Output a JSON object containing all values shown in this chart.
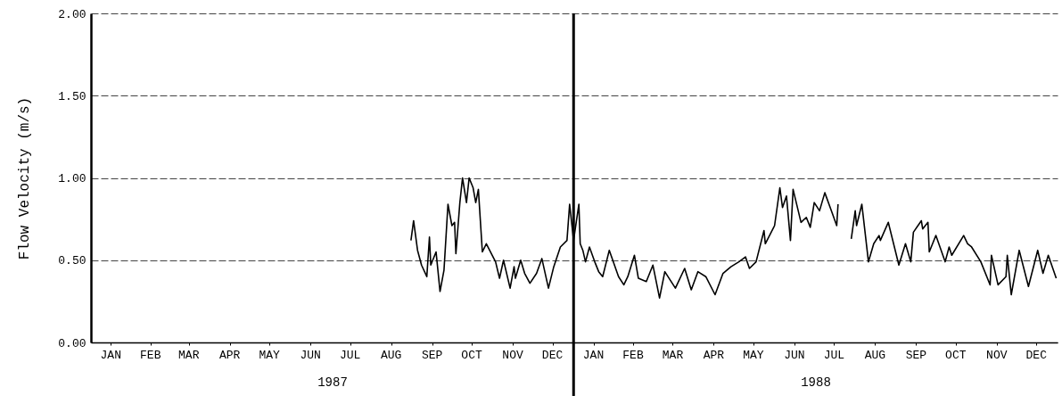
{
  "chart_data": {
    "type": "line",
    "ylabel": "Flow Velocity (m/s)",
    "x": [
      "1987-08-31",
      "1987-09-02",
      "1987-09-05",
      "1987-09-08",
      "1987-09-12",
      "1987-09-14",
      "1987-09-15",
      "1987-09-19",
      "1987-09-22",
      "1987-09-25",
      "1987-09-28",
      "1987-10-01",
      "1987-10-03",
      "1987-10-04",
      "1987-10-07",
      "1987-10-09",
      "1987-10-12",
      "1987-10-14",
      "1987-10-17",
      "1987-10-19",
      "1987-10-21",
      "1987-10-24",
      "1987-10-27",
      "1987-11-03",
      "1987-11-06",
      "1987-11-09",
      "1987-11-14",
      "1987-11-17",
      "1987-11-18",
      "1987-11-22",
      "1987-11-25",
      "1987-11-29",
      "1987-12-04",
      "1987-12-08",
      "1987-12-13",
      "1987-12-17",
      "1987-12-22",
      "1987-12-27",
      "1987-12-29",
      "1988-01-01",
      "1988-01-05",
      "1988-01-06",
      "1988-01-08",
      "1988-01-10",
      "1988-01-13",
      "1988-01-17",
      "1988-01-20",
      "1988-01-23",
      "1988-01-28",
      "1988-02-04",
      "1988-02-08",
      "1988-02-11",
      "1988-02-16",
      "1988-02-19",
      "1988-02-25",
      "1988-03-01",
      "1988-03-06",
      "1988-03-10",
      "1988-03-18",
      "1988-03-25",
      "1988-03-30",
      "1988-04-04",
      "1988-04-10",
      "1988-04-17",
      "1988-04-23",
      "1988-04-29",
      "1988-05-05",
      "1988-05-10",
      "1988-05-13",
      "1988-05-18",
      "1988-05-24",
      "1988-05-25",
      "1988-06-01",
      "1988-06-05",
      "1988-06-07",
      "1988-06-10",
      "1988-06-13",
      "1988-06-15",
      "1988-06-21",
      "1988-06-25",
      "1988-06-28",
      "1988-07-01",
      "1988-07-05",
      "1988-07-09",
      "1988-07-14",
      "1988-07-18",
      "1988-07-19",
      "1988-07-24",
      "1988-07-29",
      "1988-08-01",
      "1988-08-02",
      "1988-08-06",
      "1988-08-11",
      "1988-08-15",
      "1988-08-19",
      "1988-08-20",
      "1988-08-26",
      "1988-09-03",
      "1988-09-08",
      "1988-09-12",
      "1988-09-14",
      "1988-09-20",
      "1988-09-21",
      "1988-09-25",
      "1988-09-26",
      "1988-10-01",
      "1988-10-08",
      "1988-10-11",
      "1988-10-13",
      "1988-10-22",
      "1988-10-25",
      "1988-10-28",
      "1988-11-04",
      "1988-11-11",
      "1988-11-12",
      "1988-11-17",
      "1988-11-23",
      "1988-11-24",
      "1988-11-27",
      "1988-12-03",
      "1988-12-10",
      "1988-12-17",
      "1988-12-21",
      "1988-12-25",
      "1988-12-31"
    ],
    "series": [
      {
        "color": "#000000",
        "values": [
          0.62,
          0.74,
          0.56,
          0.47,
          0.4,
          0.64,
          0.47,
          0.55,
          0.31,
          0.44,
          0.84,
          0.71,
          0.73,
          0.54,
          0.85,
          1.0,
          0.85,
          1.0,
          0.94,
          0.85,
          0.93,
          0.55,
          0.6,
          0.49,
          0.39,
          0.5,
          0.33,
          0.46,
          0.39,
          0.5,
          0.42,
          0.36,
          0.42,
          0.51,
          0.33,
          0.46,
          0.58,
          0.62,
          0.84,
          0.62,
          0.84,
          0.6,
          0.56,
          0.49,
          0.58,
          0.49,
          0.43,
          0.4,
          0.56,
          0.4,
          0.35,
          0.4,
          0.53,
          0.39,
          0.37,
          0.47,
          0.27,
          0.43,
          0.33,
          0.45,
          0.32,
          0.43,
          0.4,
          0.29,
          0.42,
          0.46,
          0.49,
          0.52,
          0.45,
          0.49,
          0.68,
          0.6,
          0.71,
          0.94,
          0.82,
          0.89,
          0.62,
          0.93,
          0.73,
          0.76,
          0.7,
          0.85,
          0.8,
          0.91,
          0.8,
          0.71,
          0.84,
          null,
          0.63,
          0.8,
          0.71,
          0.84,
          0.49,
          0.6,
          0.65,
          0.62,
          0.73,
          0.47,
          0.6,
          0.49,
          0.67,
          0.74,
          0.69,
          0.73,
          0.55,
          0.65,
          0.49,
          0.58,
          0.53,
          0.65,
          0.6,
          0.58,
          0.49,
          0.35,
          0.53,
          0.35,
          0.4,
          0.53,
          0.29,
          0.56,
          0.34,
          0.56,
          0.42,
          0.53,
          0.39
        ]
      }
    ],
    "xlim": [
      "1987-01-01",
      "1989-01-01"
    ],
    "xticks": [
      {
        "value": "1987-01-16",
        "label": "JAN"
      },
      {
        "value": "1987-02-15",
        "label": "FEB"
      },
      {
        "value": "1987-03-16",
        "label": "MAR"
      },
      {
        "value": "1987-04-16",
        "label": "APR"
      },
      {
        "value": "1987-05-16",
        "label": "MAY"
      },
      {
        "value": "1987-06-16",
        "label": "JUN"
      },
      {
        "value": "1987-07-16",
        "label": "JUL"
      },
      {
        "value": "1987-08-16",
        "label": "AUG"
      },
      {
        "value": "1987-09-16",
        "label": "SEP"
      },
      {
        "value": "1987-10-16",
        "label": "OCT"
      },
      {
        "value": "1987-11-16",
        "label": "NOV"
      },
      {
        "value": "1987-12-16",
        "label": "DEC"
      },
      {
        "value": "1988-01-16",
        "label": "JAN"
      },
      {
        "value": "1988-02-15",
        "label": "FEB"
      },
      {
        "value": "1988-03-16",
        "label": "MAR"
      },
      {
        "value": "1988-04-16",
        "label": "APR"
      },
      {
        "value": "1988-05-16",
        "label": "MAY"
      },
      {
        "value": "1988-06-16",
        "label": "JUN"
      },
      {
        "value": "1988-07-16",
        "label": "JUL"
      },
      {
        "value": "1988-08-16",
        "label": "AUG"
      },
      {
        "value": "1988-09-16",
        "label": "SEP"
      },
      {
        "value": "1988-10-16",
        "label": "OCT"
      },
      {
        "value": "1988-11-16",
        "label": "NOV"
      },
      {
        "value": "1988-12-16",
        "label": "DEC"
      }
    ],
    "ylim": [
      0,
      2
    ],
    "yticks": [
      {
        "value": 0,
        "label": "0.00"
      },
      {
        "value": 0.5,
        "label": "0.50"
      },
      {
        "value": 1,
        "label": "1.00"
      },
      {
        "value": 1.5,
        "label": "1.50"
      },
      {
        "value": 2,
        "label": "2.00"
      }
    ],
    "grid": "y",
    "ref_lines": [
      {
        "axis": "x",
        "value": "1988-01-01",
        "color": "#000000"
      }
    ],
    "annotations": [
      "1987",
      "1988"
    ]
  }
}
